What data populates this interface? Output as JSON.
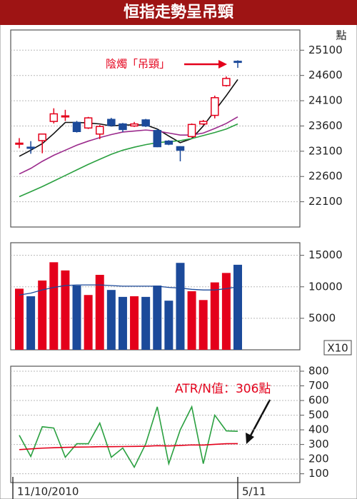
{
  "chart_data": [
    {
      "type": "candlestick",
      "title": "恒指走勢呈吊頸",
      "unit_label": "點",
      "annotation": "陰燭「吊頸」",
      "open": [
        23250,
        23180,
        23310,
        23690,
        23790,
        23670,
        23560,
        23440,
        23730,
        23640,
        23600,
        23720,
        23510,
        23300,
        23190,
        23390,
        23640,
        23810,
        24400,
        24880
      ],
      "high": [
        23360,
        23300,
        23450,
        23950,
        23920,
        23700,
        23780,
        23620,
        23760,
        23660,
        23680,
        23740,
        23540,
        23320,
        23200,
        23650,
        23720,
        24200,
        24580,
        24900
      ],
      "low": [
        23160,
        23050,
        23060,
        23650,
        23700,
        23470,
        23540,
        23340,
        23590,
        23480,
        23580,
        23580,
        23180,
        23220,
        22900,
        23370,
        23620,
        23750,
        24380,
        24750
      ],
      "close": [
        23260,
        23170,
        23440,
        23840,
        23800,
        23490,
        23760,
        23590,
        23610,
        23530,
        23640,
        23600,
        23190,
        23240,
        23120,
        23630,
        23690,
        24160,
        24540,
        24860
      ],
      "up_color": "#e4001b",
      "down_color": "#1c4a9a",
      "series": [
        {
          "color": "#111111",
          "values": [
            23000,
            23120,
            23250,
            23450,
            23670,
            23670,
            23660,
            23640,
            23600,
            23620,
            23620,
            23620,
            23540,
            23400,
            23270,
            23350,
            23600,
            23900,
            24200,
            24520
          ]
        },
        {
          "color": "#9b2a8c",
          "values": [
            22650,
            22760,
            22900,
            23020,
            23120,
            23220,
            23300,
            23370,
            23430,
            23480,
            23500,
            23520,
            23500,
            23460,
            23420,
            23420,
            23460,
            23550,
            23650,
            23780
          ]
        },
        {
          "color": "#2aa040",
          "values": [
            22200,
            22300,
            22400,
            22510,
            22620,
            22730,
            22840,
            22940,
            23040,
            23120,
            23180,
            23230,
            23270,
            23290,
            23310,
            23350,
            23410,
            23470,
            23540,
            23640
          ]
        }
      ],
      "ylim": [
        21600,
        25500
      ],
      "yticks": [
        22100,
        22600,
        23100,
        23600,
        24100,
        24600,
        25100
      ],
      "grid": true
    },
    {
      "type": "bar",
      "unit_label": "X10",
      "values": [
        9700,
        8500,
        11000,
        13900,
        12600,
        10200,
        8700,
        11900,
        9500,
        8400,
        8500,
        8400,
        10200,
        7800,
        13800,
        9300,
        7900,
        10700,
        12200,
        13500
      ],
      "colors": [
        "#e4001b",
        "#1c4a9a",
        "#e4001b",
        "#e4001b",
        "#e4001b",
        "#1c4a9a",
        "#e4001b",
        "#e4001b",
        "#1c4a9a",
        "#1c4a9a",
        "#e4001b",
        "#1c4a9a",
        "#1c4a9a",
        "#1c4a9a",
        "#1c4a9a",
        "#e4001b",
        "#e4001b",
        "#e4001b",
        "#e4001b",
        "#1c4a9a"
      ],
      "series": [
        {
          "color": "#1c4a9a",
          "values": [
            8700,
            9000,
            9500,
            9900,
            10200,
            10300,
            10300,
            10300,
            10200,
            10100,
            10100,
            10100,
            10100,
            9900,
            9800,
            9600,
            9500,
            9500,
            9700,
            10000
          ]
        }
      ],
      "ylim": [
        0,
        17000
      ],
      "yticks": [
        5000,
        10000,
        15000
      ],
      "grid": true
    },
    {
      "type": "line",
      "annotation": "ATR/N值：306點",
      "categories": [
        "11/10/2010",
        null,
        null,
        null,
        null,
        null,
        null,
        null,
        null,
        null,
        null,
        null,
        null,
        null,
        null,
        null,
        null,
        null,
        null,
        "5/11"
      ],
      "series": [
        {
          "color": "#2aa040",
          "values": [
            363,
            218,
            421,
            412,
            213,
            305,
            305,
            446,
            213,
            276,
            145,
            305,
            557,
            169,
            400,
            557,
            169,
            500,
            393,
            390
          ]
        },
        {
          "color": "#e4001b",
          "values": [
            265,
            270,
            275,
            278,
            280,
            282,
            283,
            285,
            285,
            286,
            287,
            288,
            292,
            290,
            293,
            297,
            296,
            301,
            305,
            306
          ]
        }
      ],
      "ylim": [
        40,
        834
      ],
      "yticks": [
        100,
        200,
        300,
        400,
        500,
        600,
        700,
        800
      ],
      "grid": true
    }
  ]
}
